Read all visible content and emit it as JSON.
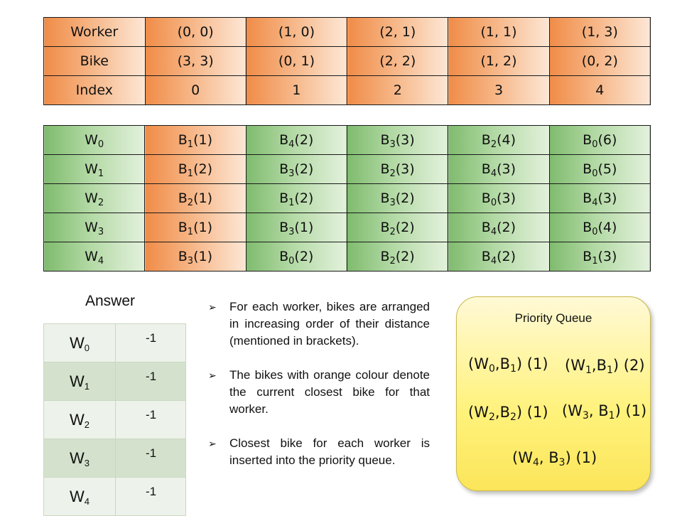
{
  "top_table": {
    "rows": [
      {
        "label": "Worker",
        "cells": [
          "(0, 0)",
          "(1, 0)",
          "(2, 1)",
          "(1, 1)",
          "(1, 3)"
        ]
      },
      {
        "label": "Bike",
        "cells": [
          "(3, 3)",
          "(0, 1)",
          "(2, 2)",
          "(1, 2)",
          "(0, 2)"
        ]
      },
      {
        "label": "Index",
        "cells": [
          "0",
          "1",
          "2",
          "3",
          "4"
        ]
      }
    ]
  },
  "pref_table": {
    "rows": [
      {
        "w": "W",
        "wi": "0",
        "cells": [
          [
            "B",
            "1",
            "(1)"
          ],
          [
            "B",
            "4",
            "(2)"
          ],
          [
            "B",
            "3",
            "(3)"
          ],
          [
            "B",
            "2",
            "(4)"
          ],
          [
            "B",
            "0",
            "(6)"
          ]
        ]
      },
      {
        "w": "W",
        "wi": "1",
        "cells": [
          [
            "B",
            "1",
            "(2)"
          ],
          [
            "B",
            "3",
            "(2)"
          ],
          [
            "B",
            "2",
            "(3)"
          ],
          [
            "B",
            "4",
            "(3)"
          ],
          [
            "B",
            "0",
            "(5)"
          ]
        ]
      },
      {
        "w": "W",
        "wi": "2",
        "cells": [
          [
            "B",
            "2",
            "(1)"
          ],
          [
            "B",
            "1",
            "(2)"
          ],
          [
            "B",
            "3",
            "(2)"
          ],
          [
            "B",
            "0",
            "(3)"
          ],
          [
            "B",
            "4",
            "(3)"
          ]
        ]
      },
      {
        "w": "W",
        "wi": "3",
        "cells": [
          [
            "B",
            "1",
            "(1)"
          ],
          [
            "B",
            "3",
            "(1)"
          ],
          [
            "B",
            "2",
            "(2)"
          ],
          [
            "B",
            "4",
            "(2)"
          ],
          [
            "B",
            "0",
            "(4)"
          ]
        ]
      },
      {
        "w": "W",
        "wi": "4",
        "cells": [
          [
            "B",
            "3",
            "(1)"
          ],
          [
            "B",
            "0",
            "(2)"
          ],
          [
            "B",
            "2",
            "(2)"
          ],
          [
            "B",
            "4",
            "(2)"
          ],
          [
            "B",
            "1",
            "(3)"
          ]
        ]
      }
    ]
  },
  "answer": {
    "title": "Answer",
    "rows": [
      {
        "w": "W",
        "wi": "0",
        "value": "-1"
      },
      {
        "w": "W",
        "wi": "1",
        "value": "-1"
      },
      {
        "w": "W",
        "wi": "2",
        "value": "-1"
      },
      {
        "w": "W",
        "wi": "3",
        "value": "-1"
      },
      {
        "w": "W",
        "wi": "4",
        "value": "-1"
      }
    ]
  },
  "notes": {
    "bullet": "➢",
    "items": [
      "For each worker, bikes are arranged in increasing order of their distance (mentioned in brackets).",
      "The bikes with orange colour denote the current closest bike for that worker.",
      "Closest bike for each worker is inserted into the priority queue."
    ]
  },
  "priority_queue": {
    "title": "Priority Queue",
    "items": [
      {
        "open": "(W",
        "wi": "0",
        "mid": ",B",
        "bi": "1",
        "close": ") (1)"
      },
      {
        "open": "(W",
        "wi": "1",
        "mid": ",B",
        "bi": "1",
        "close": ") (2)"
      },
      {
        "open": "(W",
        "wi": "2",
        "mid": ",B",
        "bi": "2",
        "close": ") (1)"
      },
      {
        "open": "(W",
        "wi": "3",
        "mid": ", B",
        "bi": "1",
        "close": ") (1)"
      },
      {
        "open": "(W",
        "wi": "4",
        "mid": ", B",
        "bi": "3",
        "close": ") (1)"
      }
    ]
  },
  "colors": {
    "closest": "#f08c48",
    "other": "#7fbb6e",
    "queue": "#fff27a"
  }
}
